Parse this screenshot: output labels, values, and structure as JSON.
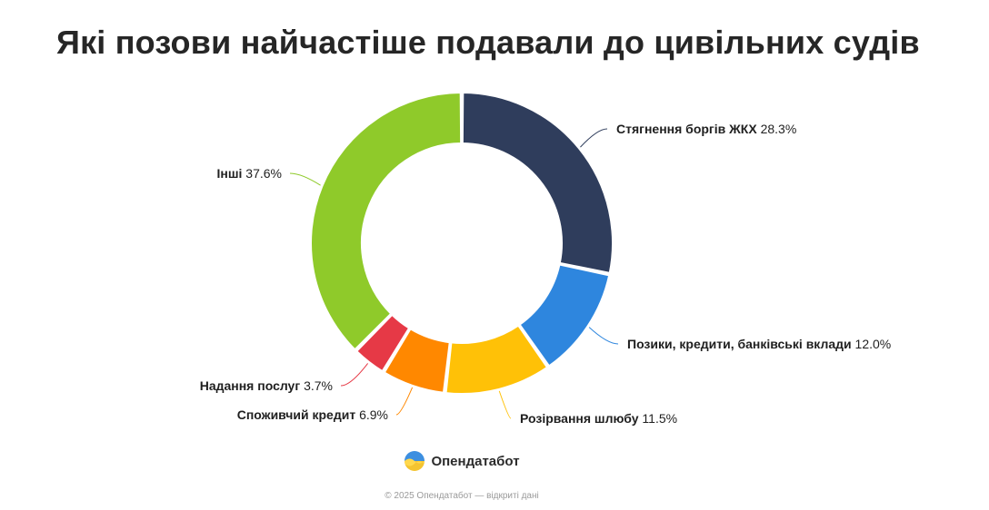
{
  "header": {
    "title": "Які позови найчастіше подавали до цивільних судів"
  },
  "chart_data": {
    "type": "pie",
    "variant": "donut",
    "slices": [
      {
        "label": "Стягнення боргів ЖКХ",
        "value": 28.3,
        "display": "28.3%",
        "color": "#2f3d5c"
      },
      {
        "label": "Позики, кредити, банківські вклади",
        "value": 12.0,
        "display": "12.0%",
        "color": "#2e86de"
      },
      {
        "label": "Розірвання шлюбу",
        "value": 11.5,
        "display": "11.5%",
        "color": "#ffc107"
      },
      {
        "label": "Споживчий кредит",
        "value": 6.9,
        "display": "6.9%",
        "color": "#ff8800"
      },
      {
        "label": "Надання послуг",
        "value": 3.7,
        "display": "3.7%",
        "color": "#e63946"
      },
      {
        "label": "Інші",
        "value": 37.6,
        "display": "37.6%",
        "color": "#8fca2a"
      }
    ]
  },
  "brand": {
    "name": "Опендатабот",
    "logo_icon": "opendatabot-logo-icon"
  },
  "footer": {
    "text": "© 2025 Опендатабот — відкриті дані"
  }
}
